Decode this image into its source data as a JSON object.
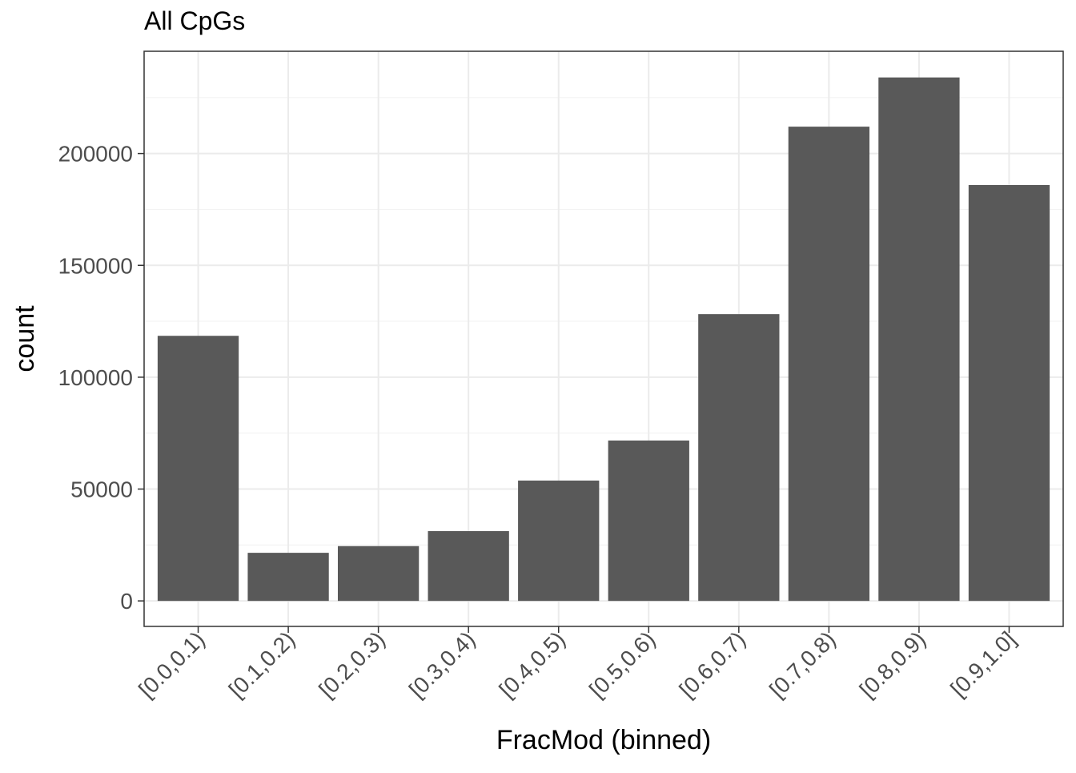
{
  "chart_data": {
    "type": "bar",
    "title": "All CpGs",
    "xlabel": "FracMod (binned)",
    "ylabel": "count",
    "categories": [
      "[0.0,0.1)",
      "[0.1,0.2)",
      "[0.2,0.3)",
      "[0.3,0.4)",
      "[0.4,0.5)",
      "[0.5,0.6)",
      "[0.6,0.7)",
      "[0.7,0.8)",
      "[0.8,0.9)",
      "[0.9,1.0]"
    ],
    "values": [
      118500,
      21500,
      24500,
      31200,
      53800,
      71700,
      128200,
      212000,
      234000,
      185900
    ],
    "ylim": [
      -11400,
      245700
    ],
    "yticks": [
      0,
      50000,
      100000,
      150000,
      200000
    ],
    "ytick_labels": [
      "0",
      "50000",
      "100000",
      "150000",
      "200000"
    ],
    "grid": true,
    "colors": {
      "bar": "#595959",
      "panel_border": "#333333",
      "grid_major": "#ebebeb",
      "grid_minor": "#f3f3f3",
      "tick_label": "#4d4d4d",
      "axis_title": "#000000"
    }
  }
}
